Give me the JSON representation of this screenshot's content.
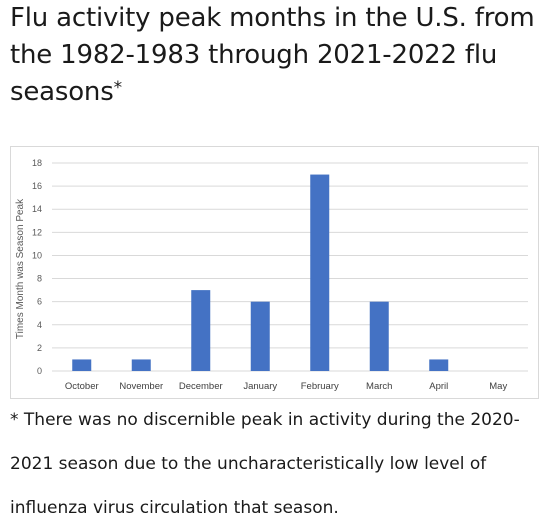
{
  "title_text": "Flu activity peak months in the U.S. from the 1982-1983 through 2021-2022 flu seasons",
  "title_mark": "*",
  "footnote": "* There was no discernible peak in activity during the 2020-2021 season due to the uncharacteristically low level of influenza virus circulation that season.",
  "chart_data": {
    "type": "bar",
    "title": "",
    "xlabel": "",
    "ylabel": "Times Month was Season Peak",
    "categories": [
      "October",
      "November",
      "December",
      "January",
      "February",
      "March",
      "April",
      "May"
    ],
    "values": [
      1,
      1,
      7,
      6,
      17,
      6,
      1,
      0
    ],
    "ylim": [
      0,
      18
    ],
    "yticks": [
      0,
      2,
      4,
      6,
      8,
      10,
      12,
      14,
      16,
      18
    ],
    "grid": true,
    "legend": "none",
    "bar_color": "#4472c4",
    "grid_color": "#d9d9d9"
  }
}
